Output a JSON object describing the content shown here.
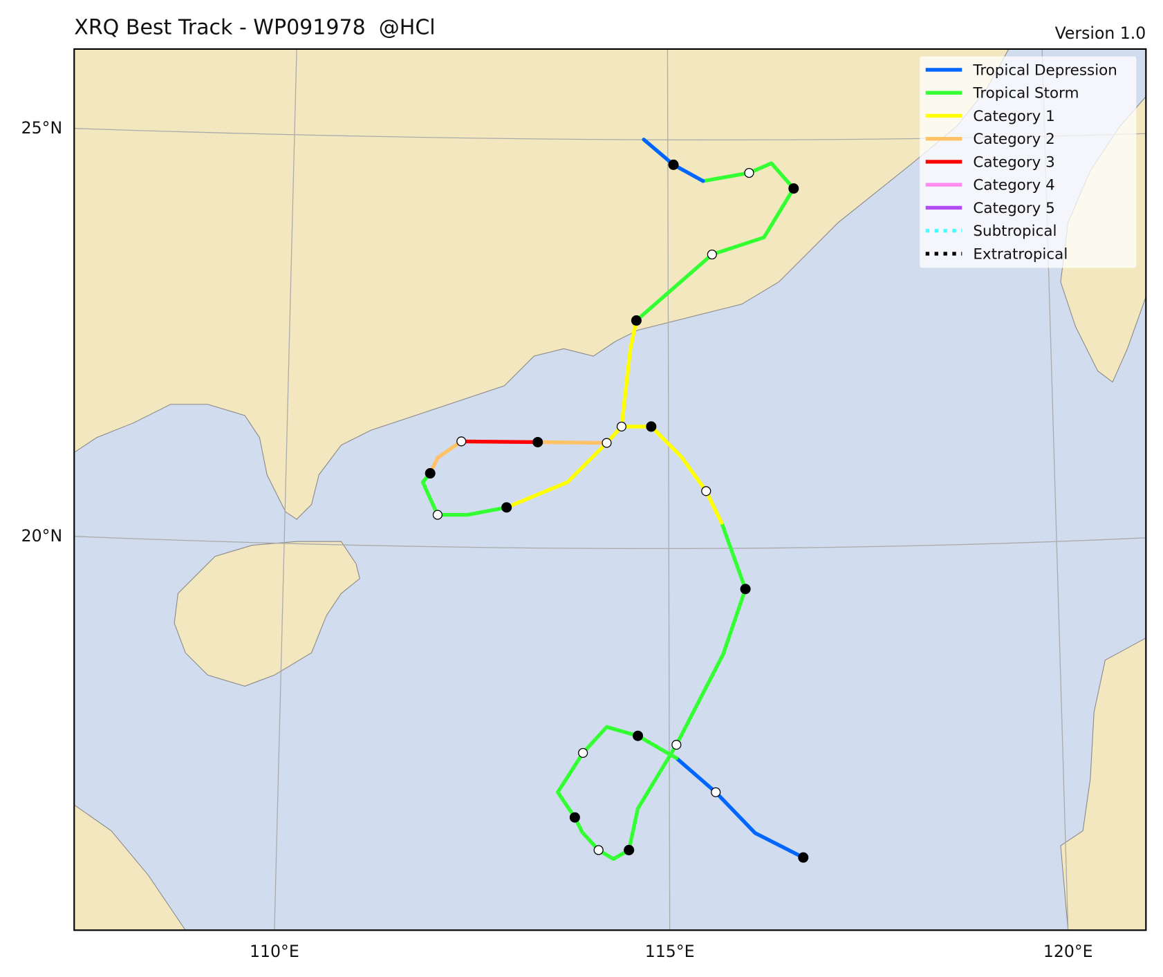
{
  "header": {
    "title": "XRQ Best Track - WP091978  @HCl",
    "version": "Version 1.0"
  },
  "axes": {
    "y_labels": [
      "25°N",
      "20°N"
    ],
    "x_labels": [
      "110°E",
      "115°E",
      "120°E"
    ]
  },
  "legend": [
    {
      "label": "Tropical Depression",
      "color": "#0066ff",
      "style": "solid"
    },
    {
      "label": "Tropical Storm",
      "color": "#33ff33",
      "style": "solid"
    },
    {
      "label": "Category 1",
      "color": "#ffff00",
      "style": "solid"
    },
    {
      "label": "Category 2",
      "color": "#ffc266",
      "style": "solid"
    },
    {
      "label": "Category 3",
      "color": "#ff0000",
      "style": "solid"
    },
    {
      "label": "Category 4",
      "color": "#ff8cf0",
      "style": "solid"
    },
    {
      "label": "Category 5",
      "color": "#b04cf0",
      "style": "solid"
    },
    {
      "label": "Subtropical",
      "color": "#44ffff",
      "style": "dotted"
    },
    {
      "label": "Extratropical",
      "color": "#000000",
      "style": "dotted"
    }
  ]
}
